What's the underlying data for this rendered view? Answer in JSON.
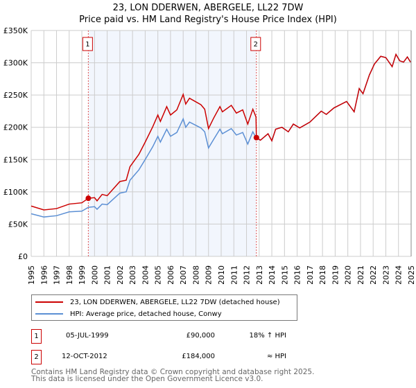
{
  "chart_data": {
    "type": "line",
    "title": "23, LON DDERWEN, ABERGELE, LL22 7DW",
    "subtitle": "Price paid vs. HM Land Registry's House Price Index (HPI)",
    "xlim": [
      1995,
      2025
    ],
    "ylim": [
      0,
      350000
    ],
    "x_ticks": [
      "1995",
      "1996",
      "1997",
      "1998",
      "1999",
      "2000",
      "2001",
      "2002",
      "2003",
      "2004",
      "2005",
      "2006",
      "2007",
      "2008",
      "2009",
      "2010",
      "2011",
      "2012",
      "2013",
      "2014",
      "2015",
      "2016",
      "2017",
      "2018",
      "2019",
      "2020",
      "2021",
      "2022",
      "2023",
      "2024",
      "2025"
    ],
    "y_ticks": [
      {
        "v": 0,
        "label": "£0"
      },
      {
        "v": 50000,
        "label": "£50K"
      },
      {
        "v": 100000,
        "label": "£100K"
      },
      {
        "v": 150000,
        "label": "£150K"
      },
      {
        "v": 200000,
        "label": "£200K"
      },
      {
        "v": 250000,
        "label": "£250K"
      },
      {
        "v": 300000,
        "label": "£300K"
      },
      {
        "v": 350000,
        "label": "£350K"
      }
    ],
    "grid": true,
    "shaded_range": [
      1999.51,
      2012.78
    ],
    "series": [
      {
        "name": "23, LON DDERWEN, ABERGELE, LL22 7DW (detached house)",
        "color": "#cc0000",
        "x": [
          1995.0,
          1996,
          1997,
          1998,
          1999,
          1999.51,
          2000,
          2000.2,
          2000.6,
          2001,
          2002,
          2002.5,
          2002.8,
          2003.5,
          2004,
          2004.6,
          2005,
          2005.2,
          2005.7,
          2006,
          2006.5,
          2007,
          2007.2,
          2007.5,
          2008.4,
          2008.7,
          2009.0,
          2009.4,
          2009.9,
          2010.1,
          2010.8,
          2011.2,
          2011.7,
          2012.1,
          2012.5,
          2012.75,
          2012.78,
          2013.1,
          2013.7,
          2014.0,
          2014.3,
          2014.8,
          2015.3,
          2015.7,
          2016.2,
          2017.0,
          2017.9,
          2018.3,
          2018.9,
          2019.9,
          2020.5,
          2020.9,
          2021.2,
          2021.7,
          2022.1,
          2022.6,
          2023.0,
          2023.5,
          2023.8,
          2024.1,
          2024.4,
          2024.7,
          2024.95
        ],
        "y": [
          78000,
          72000,
          74000,
          81000,
          83000,
          90000,
          91000,
          86000,
          96000,
          94000,
          116000,
          118000,
          139000,
          158000,
          177000,
          201000,
          219000,
          209000,
          232000,
          219000,
          227000,
          251000,
          236000,
          245000,
          235000,
          228000,
          198000,
          214000,
          232000,
          224000,
          234000,
          222000,
          227000,
          205000,
          228000,
          216000,
          184000,
          180000,
          190000,
          179000,
          197000,
          200000,
          193000,
          205000,
          199000,
          208000,
          225000,
          220000,
          230000,
          240000,
          224000,
          260000,
          252000,
          281000,
          298000,
          310000,
          308000,
          294000,
          313000,
          303000,
          301000,
          309000,
          301000
        ]
      },
      {
        "name": "HPI: Average price, detached house, Conwy",
        "color": "#5b8fd4",
        "x": [
          1995.0,
          1996,
          1997,
          1998,
          1999,
          1999.51,
          2000,
          2000.2,
          2000.6,
          2001,
          2002,
          2002.5,
          2002.8,
          2003.5,
          2004,
          2004.6,
          2005,
          2005.2,
          2005.7,
          2006,
          2006.5,
          2007,
          2007.2,
          2007.5,
          2008.4,
          2008.7,
          2009.0,
          2009.4,
          2009.9,
          2010.1,
          2010.8,
          2011.2,
          2011.7,
          2012.1,
          2012.5,
          2012.78,
          2013.1,
          2013.7,
          2014.0,
          2014.3,
          2014.8,
          2015.3,
          2015.7,
          2016.2,
          2017.0,
          2017.9,
          2018.3,
          2018.9,
          2019.9,
          2020.5,
          2020.9,
          2021.2,
          2021.7,
          2022.1,
          2022.6,
          2023.0,
          2023.5,
          2023.8,
          2024.1,
          2024.4,
          2024.7,
          2024.95
        ],
        "y": [
          66000,
          61000,
          63000,
          69000,
          70000,
          76000,
          77000,
          73000,
          81000,
          80000,
          98000,
          100000,
          118000,
          134000,
          150000,
          170000,
          186000,
          177000,
          197000,
          186000,
          192000,
          213000,
          200000,
          208000,
          199000,
          193000,
          168000,
          181000,
          197000,
          190000,
          198000,
          188000,
          192000,
          174000,
          193000,
          183000,
          180000,
          190000,
          179000,
          197000,
          200000,
          193000,
          205000,
          199000,
          208000,
          225000,
          220000,
          230000,
          240000,
          224000,
          260000,
          252000,
          281000,
          298000,
          310000,
          308000,
          294000,
          313000,
          303000,
          301000,
          309000,
          301000
        ]
      }
    ],
    "annotations": [
      {
        "label": "1",
        "x": 1999.51,
        "y": 90000
      },
      {
        "label": "2",
        "x": 2012.78,
        "y": 184000
      }
    ],
    "legend_placement": "below"
  },
  "transactions": [
    {
      "num": "1",
      "date": "05-JUL-1999",
      "price": "£90,000",
      "hpi": "18% ↑ HPI"
    },
    {
      "num": "2",
      "date": "12-OCT-2012",
      "price": "£184,000",
      "hpi": "≈ HPI"
    }
  ],
  "footer": {
    "line1": "Contains HM Land Registry data © Crown copyright and database right 2025.",
    "line2": "This data is licensed under the Open Government Licence v3.0."
  }
}
